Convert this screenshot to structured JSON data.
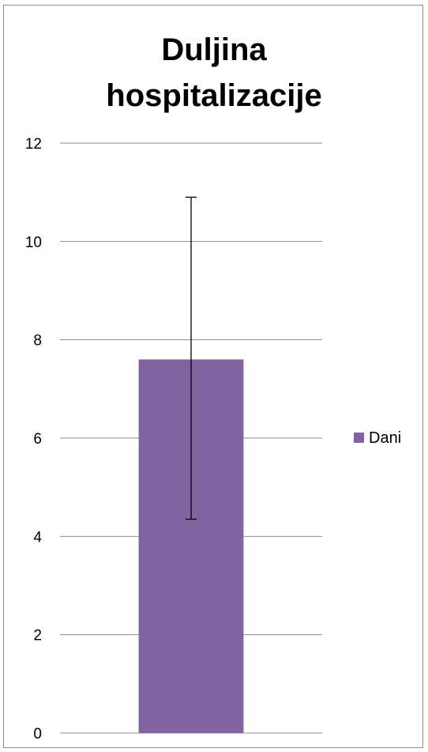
{
  "chart_data": {
    "type": "bar",
    "title": "Duljina hospitalizacije",
    "categories": [
      ""
    ],
    "series": [
      {
        "name": "Dani",
        "values": [
          7.6
        ],
        "error_low": [
          4.35
        ],
        "error_high": [
          10.9
        ]
      }
    ],
    "ylim": [
      0,
      12
    ],
    "yticks": [
      0,
      2,
      4,
      6,
      8,
      10,
      12
    ],
    "grid": true,
    "legend_placement": "right",
    "bar_color": "#8064a2"
  }
}
